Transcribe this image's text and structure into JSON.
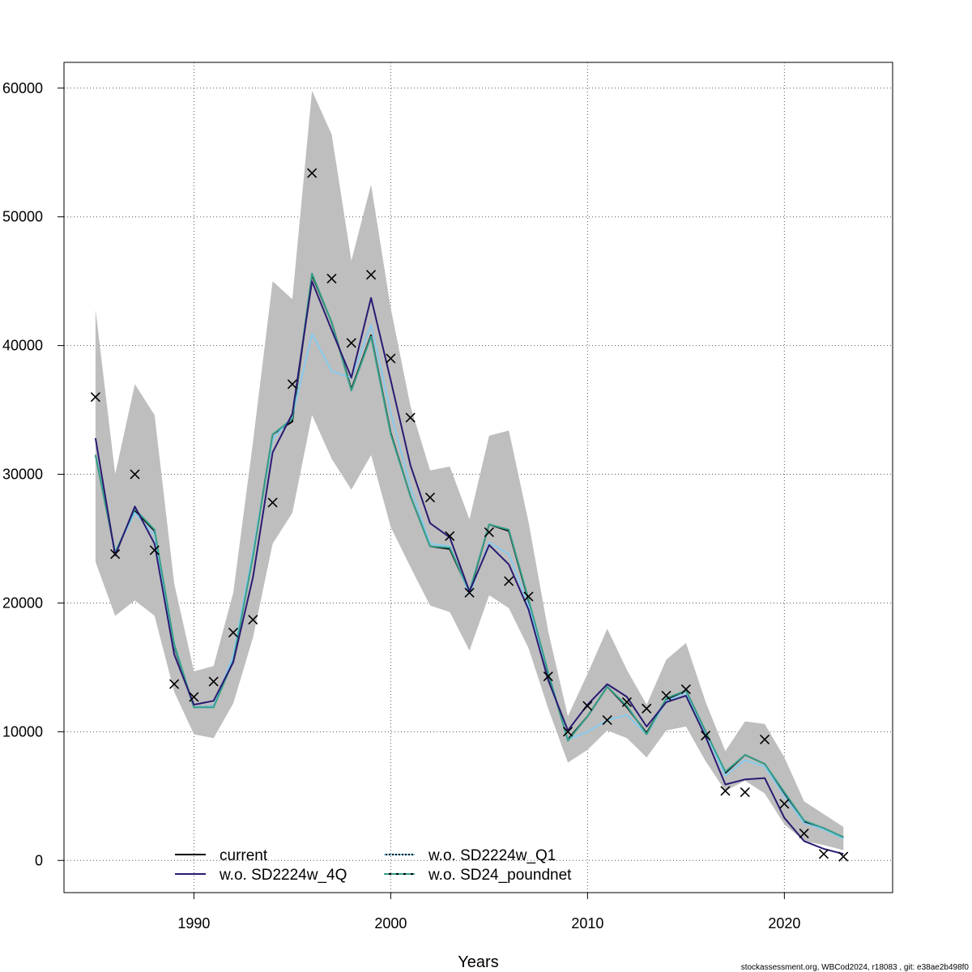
{
  "chart_data": {
    "type": "line",
    "xlabel": "Years",
    "ylabel": "",
    "xlim": [
      1983.4,
      2025.5
    ],
    "ylim": [
      -2500,
      62000
    ],
    "x_ticks": [
      1990,
      2000,
      2010,
      2020
    ],
    "y_ticks": [
      0,
      10000,
      20000,
      30000,
      40000,
      50000,
      60000
    ],
    "grid": true,
    "legend_position": "bottom-left",
    "footer": "stockassessment.org, WBCod2024, r18083 , git: e38ae2b498f0",
    "years": [
      1985,
      1986,
      1987,
      1988,
      1989,
      1990,
      1991,
      1992,
      1993,
      1994,
      1995,
      1996,
      1997,
      1998,
      1999,
      2000,
      2001,
      2002,
      2003,
      2004,
      2005,
      2006,
      2007,
      2008,
      2009,
      2010,
      2011,
      2012,
      2013,
      2014,
      2015,
      2016,
      2017,
      2018,
      2019,
      2020,
      2021,
      2022,
      2023
    ],
    "ci_band": {
      "upper": [
        42800,
        30000,
        37000,
        34600,
        21500,
        14700,
        15100,
        20800,
        32500,
        45000,
        43600,
        59800,
        56400,
        46600,
        52500,
        42900,
        35300,
        30300,
        30600,
        26500,
        33000,
        33400,
        26300,
        17800,
        11200,
        14500,
        18000,
        14800,
        12100,
        15600,
        16900,
        12300,
        8500,
        10800,
        10600,
        8000,
        4600,
        3600,
        2600
      ],
      "lower": [
        23200,
        19000,
        20200,
        19000,
        13100,
        9800,
        9500,
        12200,
        17300,
        24600,
        27000,
        34600,
        31200,
        28800,
        31500,
        25900,
        22800,
        19800,
        19300,
        16300,
        20600,
        19600,
        16500,
        11800,
        7600,
        8600,
        10100,
        9500,
        8000,
        10100,
        10400,
        7700,
        5400,
        6200,
        5200,
        2800,
        1500,
        1200,
        800
      ]
    },
    "series": [
      {
        "name": "current",
        "color": "#000000",
        "dash": "solid",
        "values": [
          31500,
          23900,
          27200,
          25600,
          16600,
          11900,
          12000,
          15500,
          23700,
          33100,
          34100,
          45500,
          41800,
          36600,
          40800,
          33200,
          28300,
          24400,
          24200,
          20800,
          26100,
          25600,
          20200,
          14500,
          9400,
          11200,
          13500,
          11900,
          9900,
          12500,
          13200,
          10000,
          6800,
          8200,
          7500,
          5200,
          3000,
          2500,
          1800
        ]
      },
      {
        "name": "w.o. SD2224w_4Q",
        "color": "#2a1a72",
        "dash": "solid",
        "values": [
          32800,
          23700,
          27500,
          24600,
          16000,
          12100,
          12400,
          15400,
          22000,
          31700,
          34700,
          45000,
          41200,
          37500,
          43700,
          37300,
          30700,
          26200,
          25100,
          20900,
          24500,
          23000,
          19500,
          14000,
          10100,
          12100,
          13700,
          12700,
          10400,
          12300,
          12800,
          9600,
          5900,
          6300,
          6400,
          3300,
          1500,
          900,
          500
        ]
      },
      {
        "name": "w.o. SD2224w_Q1",
        "color": "#87cbee",
        "dash": "dotted",
        "values": [
          31500,
          24000,
          27000,
          25300,
          16700,
          11900,
          12000,
          15900,
          24000,
          32700,
          34500,
          40900,
          38000,
          37500,
          41600,
          34800,
          29000,
          24600,
          24400,
          20700,
          24700,
          23800,
          19800,
          14600,
          9400,
          10000,
          10900,
          11300,
          9800,
          12400,
          13000,
          9900,
          6600,
          7800,
          7300,
          5000,
          2900,
          2400,
          1700
        ]
      },
      {
        "name": "w.o. SD24_poundnet",
        "color": "#35a08a",
        "dash": "dashed",
        "values": [
          31500,
          23900,
          27300,
          25700,
          16800,
          11900,
          11900,
          15500,
          23600,
          33100,
          34300,
          45600,
          41800,
          36500,
          40700,
          33100,
          28300,
          24400,
          24300,
          20900,
          26100,
          25700,
          20300,
          14600,
          9300,
          11200,
          13500,
          12000,
          9800,
          12600,
          13200,
          10000,
          6900,
          8200,
          7500,
          5300,
          3100,
          2500,
          1800
        ]
      }
    ],
    "observations": [
      {
        "x": 1985,
        "y": 36000
      },
      {
        "x": 1986,
        "y": 23800
      },
      {
        "x": 1987,
        "y": 30000
      },
      {
        "x": 1988,
        "y": 24100
      },
      {
        "x": 1989,
        "y": 13700
      },
      {
        "x": 1990,
        "y": 12700
      },
      {
        "x": 1991,
        "y": 13900
      },
      {
        "x": 1992,
        "y": 17700
      },
      {
        "x": 1993,
        "y": 18700
      },
      {
        "x": 1994,
        "y": 27800
      },
      {
        "x": 1995,
        "y": 37000
      },
      {
        "x": 1996,
        "y": 53400
      },
      {
        "x": 1997,
        "y": 45200
      },
      {
        "x": 1998,
        "y": 40200
      },
      {
        "x": 1999,
        "y": 45500
      },
      {
        "x": 2000,
        "y": 39000
      },
      {
        "x": 2001,
        "y": 34400
      },
      {
        "x": 2002,
        "y": 28200
      },
      {
        "x": 2003,
        "y": 25200
      },
      {
        "x": 2004,
        "y": 20800
      },
      {
        "x": 2005,
        "y": 25500
      },
      {
        "x": 2006,
        "y": 21700
      },
      {
        "x": 2007,
        "y": 20500
      },
      {
        "x": 2008,
        "y": 14300
      },
      {
        "x": 2009,
        "y": 10000
      },
      {
        "x": 2010,
        "y": 12000
      },
      {
        "x": 2011,
        "y": 10900
      },
      {
        "x": 2012,
        "y": 12300
      },
      {
        "x": 2013,
        "y": 11800
      },
      {
        "x": 2014,
        "y": 12800
      },
      {
        "x": 2015,
        "y": 13300
      },
      {
        "x": 2016,
        "y": 9700
      },
      {
        "x": 2017,
        "y": 5400
      },
      {
        "x": 2018,
        "y": 5300
      },
      {
        "x": 2019,
        "y": 9400
      },
      {
        "x": 2020,
        "y": 4400
      },
      {
        "x": 2021,
        "y": 2100
      },
      {
        "x": 2022,
        "y": 500
      },
      {
        "x": 2023,
        "y": 300
      }
    ],
    "colors": {
      "band": "#bebebe",
      "grid": "#555555",
      "marker": "#000000"
    }
  }
}
